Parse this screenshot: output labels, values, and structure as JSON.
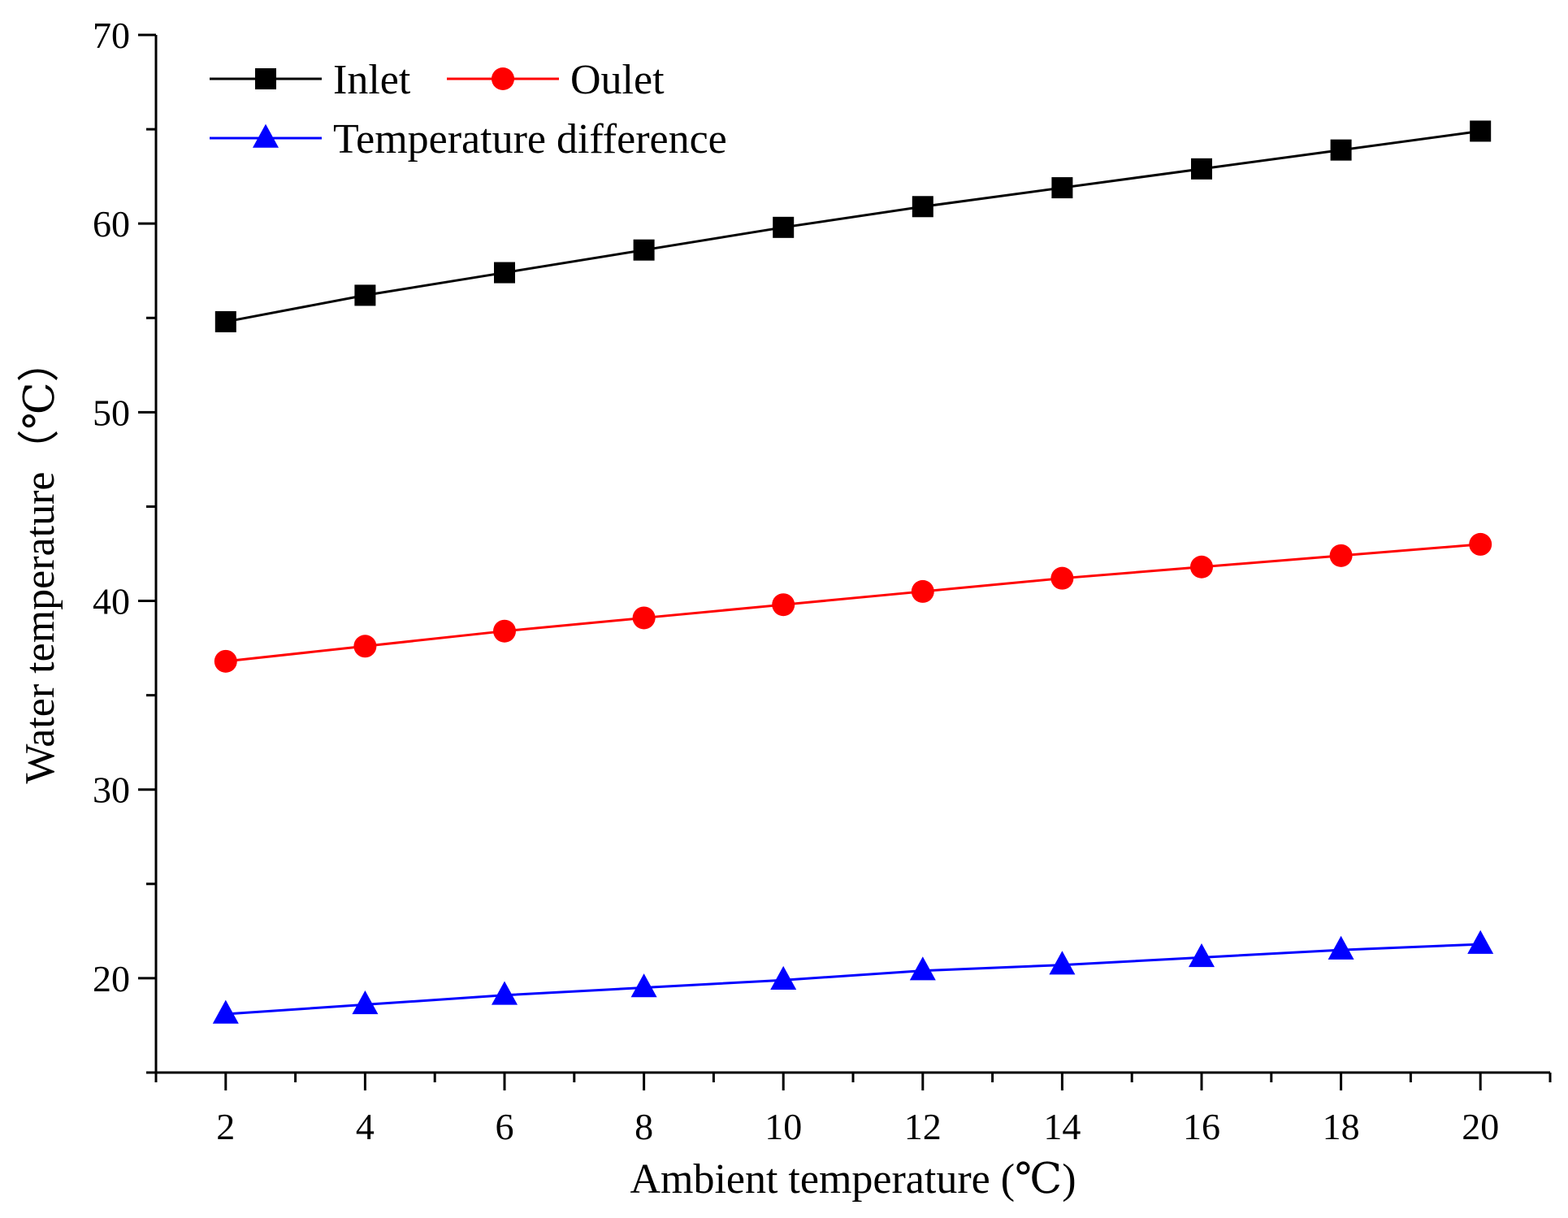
{
  "chart_data": {
    "type": "line",
    "xlabel": "Ambient temperature (℃)",
    "ylabel": "Water temperature（℃）",
    "x": [
      2,
      4,
      6,
      8,
      10,
      12,
      14,
      16,
      18,
      20
    ],
    "xlim": [
      1,
      21
    ],
    "ylim": [
      15,
      70
    ],
    "x_ticks": [
      2,
      4,
      6,
      8,
      10,
      12,
      14,
      16,
      18,
      20
    ],
    "y_ticks": [
      20,
      30,
      40,
      50,
      60,
      70
    ],
    "grid": false,
    "legend_position": "top-left",
    "series": [
      {
        "name": "Inlet",
        "color": "#000000",
        "marker": "square",
        "values": [
          54.8,
          56.2,
          57.4,
          58.6,
          59.8,
          60.9,
          61.9,
          62.9,
          63.9,
          64.9
        ]
      },
      {
        "name": "Oulet",
        "color": "#ff0000",
        "marker": "circle",
        "values": [
          36.8,
          37.6,
          38.4,
          39.1,
          39.8,
          40.5,
          41.2,
          41.8,
          42.4,
          43.0
        ]
      },
      {
        "name": "Temperature difference",
        "color": "#0000ff",
        "marker": "triangle",
        "values": [
          18.1,
          18.6,
          19.1,
          19.5,
          19.9,
          20.4,
          20.7,
          21.1,
          21.5,
          21.8
        ]
      }
    ]
  }
}
